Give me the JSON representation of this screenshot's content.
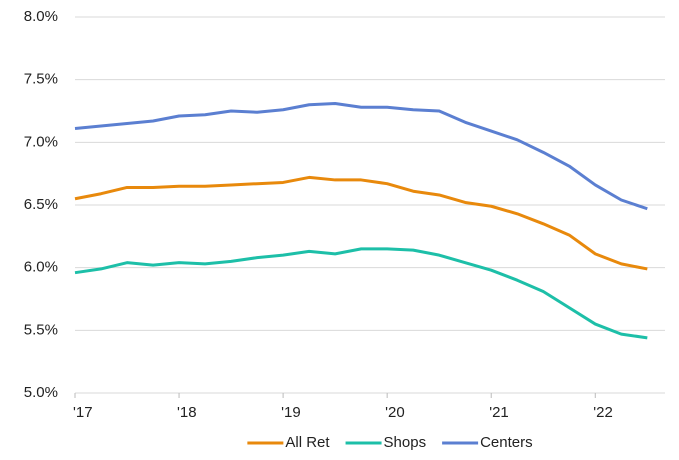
{
  "chart_data": {
    "type": "line",
    "x": [
      2017,
      2017.25,
      2017.5,
      2017.75,
      2018,
      2018.25,
      2018.5,
      2018.75,
      2019,
      2019.25,
      2019.5,
      2019.75,
      2020,
      2020.25,
      2020.5,
      2020.75,
      2021,
      2021.25,
      2021.5,
      2021.75,
      2022,
      2022.25,
      2022.5
    ],
    "series": [
      {
        "name": "All Ret",
        "color": "#e8890c",
        "values": [
          6.55,
          6.59,
          6.64,
          6.64,
          6.65,
          6.65,
          6.66,
          6.67,
          6.68,
          6.72,
          6.7,
          6.7,
          6.67,
          6.61,
          6.58,
          6.52,
          6.49,
          6.43,
          6.35,
          6.26,
          6.11,
          6.03,
          5.99
        ]
      },
      {
        "name": "Shops",
        "color": "#1dbfa8",
        "values": [
          5.96,
          5.99,
          6.04,
          6.02,
          6.04,
          6.03,
          6.05,
          6.08,
          6.1,
          6.13,
          6.11,
          6.15,
          6.15,
          6.14,
          6.1,
          6.04,
          5.98,
          5.9,
          5.81,
          5.68,
          5.55,
          5.47,
          5.44
        ]
      },
      {
        "name": "Centers",
        "color": "#5b7fd1",
        "values": [
          7.11,
          7.13,
          7.15,
          7.17,
          7.21,
          7.22,
          7.25,
          7.24,
          7.26,
          7.3,
          7.31,
          7.28,
          7.28,
          7.26,
          7.25,
          7.16,
          7.09,
          7.02,
          6.92,
          6.81,
          6.66,
          6.54,
          6.47
        ]
      }
    ],
    "xlim": [
      2017,
      2022.67
    ],
    "xticks": [
      {
        "value": 2017,
        "label": "'17"
      },
      {
        "value": 2018,
        "label": "'18"
      },
      {
        "value": 2019,
        "label": "'19"
      },
      {
        "value": 2020,
        "label": "'20"
      },
      {
        "value": 2021,
        "label": "'21"
      },
      {
        "value": 2022,
        "label": "'22"
      }
    ],
    "ylim": [
      5,
      8
    ],
    "yticks": [
      {
        "value": 5,
        "label": "5.0%"
      },
      {
        "value": 5.5,
        "label": "5.5%"
      },
      {
        "value": 6,
        "label": "6.0%"
      },
      {
        "value": 6.5,
        "label": "6.5%"
      },
      {
        "value": 7,
        "label": "7.0%"
      },
      {
        "value": 7.5,
        "label": "7.5%"
      },
      {
        "value": 8,
        "label": "8.0%"
      }
    ],
    "grid": true,
    "legend": "bottom"
  }
}
